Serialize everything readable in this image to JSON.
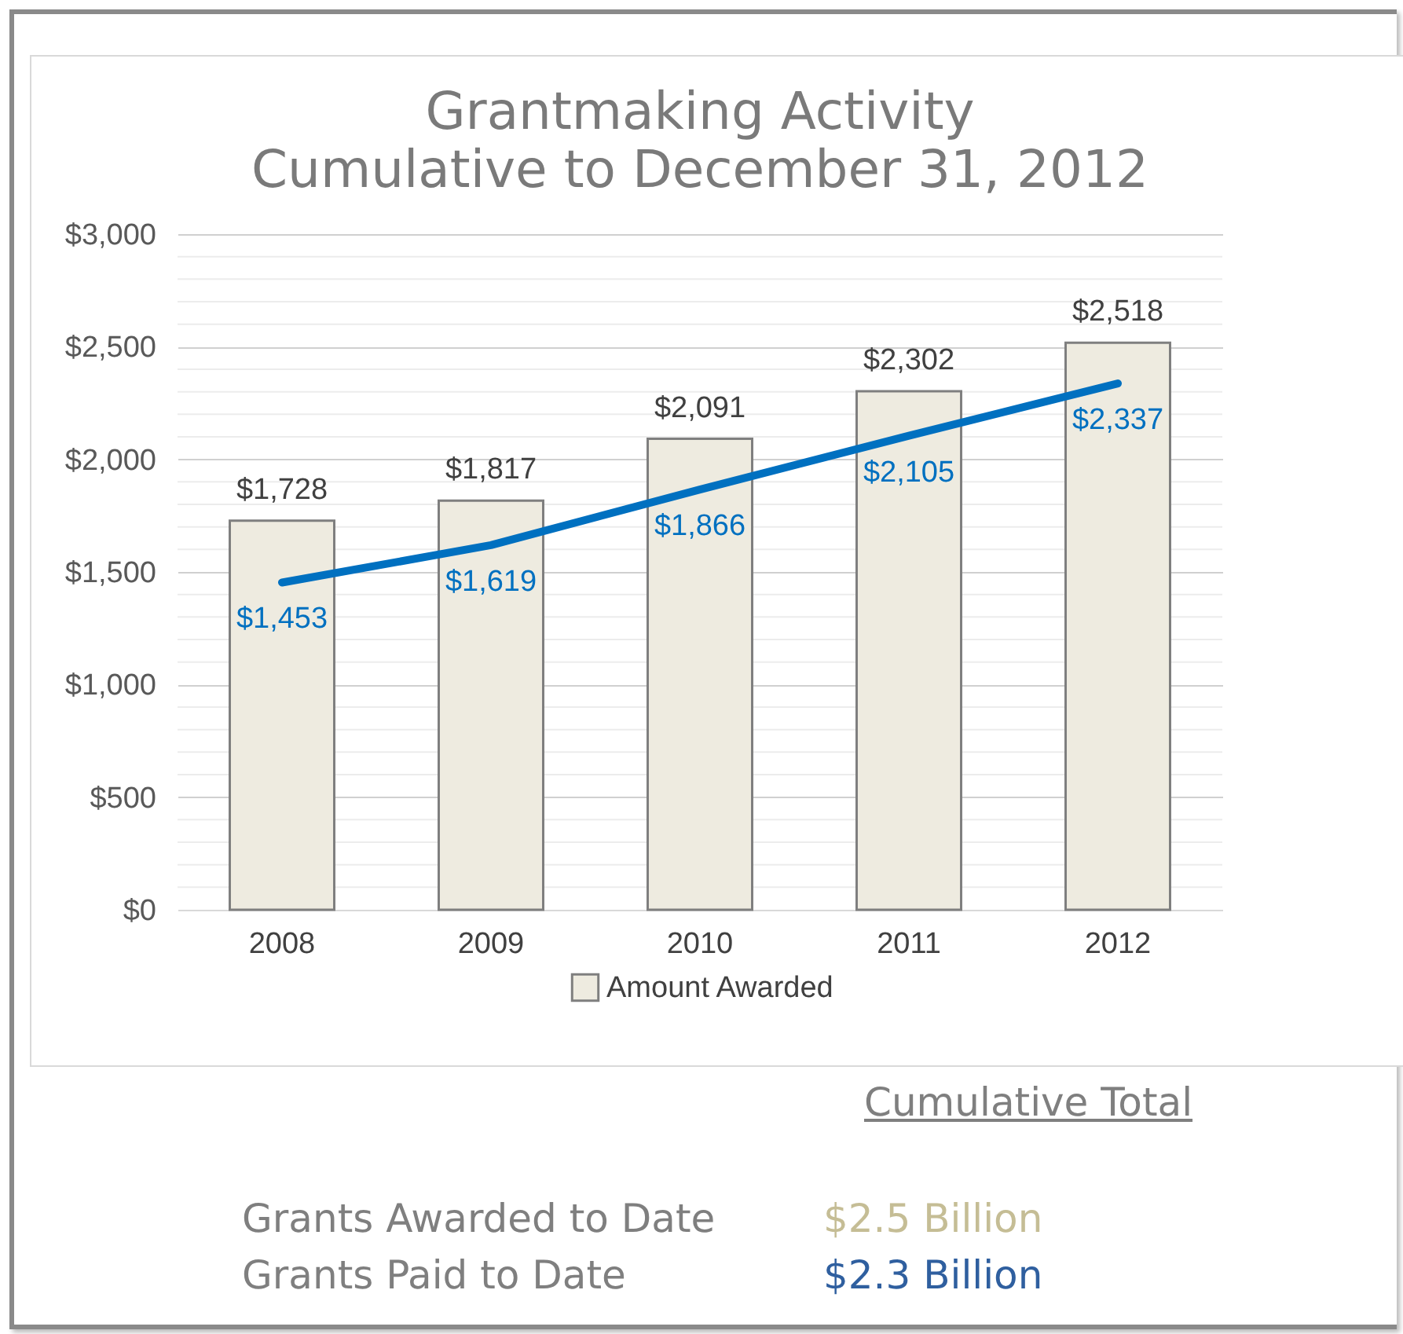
{
  "chart_data": {
    "type": "bar",
    "title": "Grantmaking Activity",
    "subtitle": "Cumulative to December 31, 2012",
    "categories": [
      "2008",
      "2009",
      "2010",
      "2011",
      "2012"
    ],
    "series": [
      {
        "name": "Amount Awarded",
        "color": "#eeebe0",
        "values": [
          1728,
          1817,
          2091,
          2302,
          2518
        ],
        "value_labels": [
          "$1,728",
          "$1,817",
          "$2,091",
          "$2,302",
          "$2,518"
        ]
      },
      {
        "type": "line",
        "color": "#0070c0",
        "values": [
          1453,
          1619,
          1866,
          2105,
          2337
        ],
        "value_labels": [
          "$1,453",
          "$1,619",
          "$1,866",
          "$2,105",
          "$2,337"
        ]
      }
    ],
    "ylim": [
      0,
      3000
    ],
    "yticks": [
      {
        "value": 0,
        "label": "$0"
      },
      {
        "value": 500,
        "label": "$500"
      },
      {
        "value": 1000,
        "label": "$1,000"
      },
      {
        "value": 1500,
        "label": "$1,500"
      },
      {
        "value": 2000,
        "label": "$2,000"
      },
      {
        "value": 2500,
        "label": "$2,500"
      },
      {
        "value": 3000,
        "label": "$3,000"
      }
    ],
    "grid": "y",
    "legend": "bottom",
    "annotations": [
      "Cumulative Total",
      "Grants Awarded to Date",
      "$2.5 Billion",
      "Grants Paid to Date",
      "$2.3 Billion"
    ]
  }
}
